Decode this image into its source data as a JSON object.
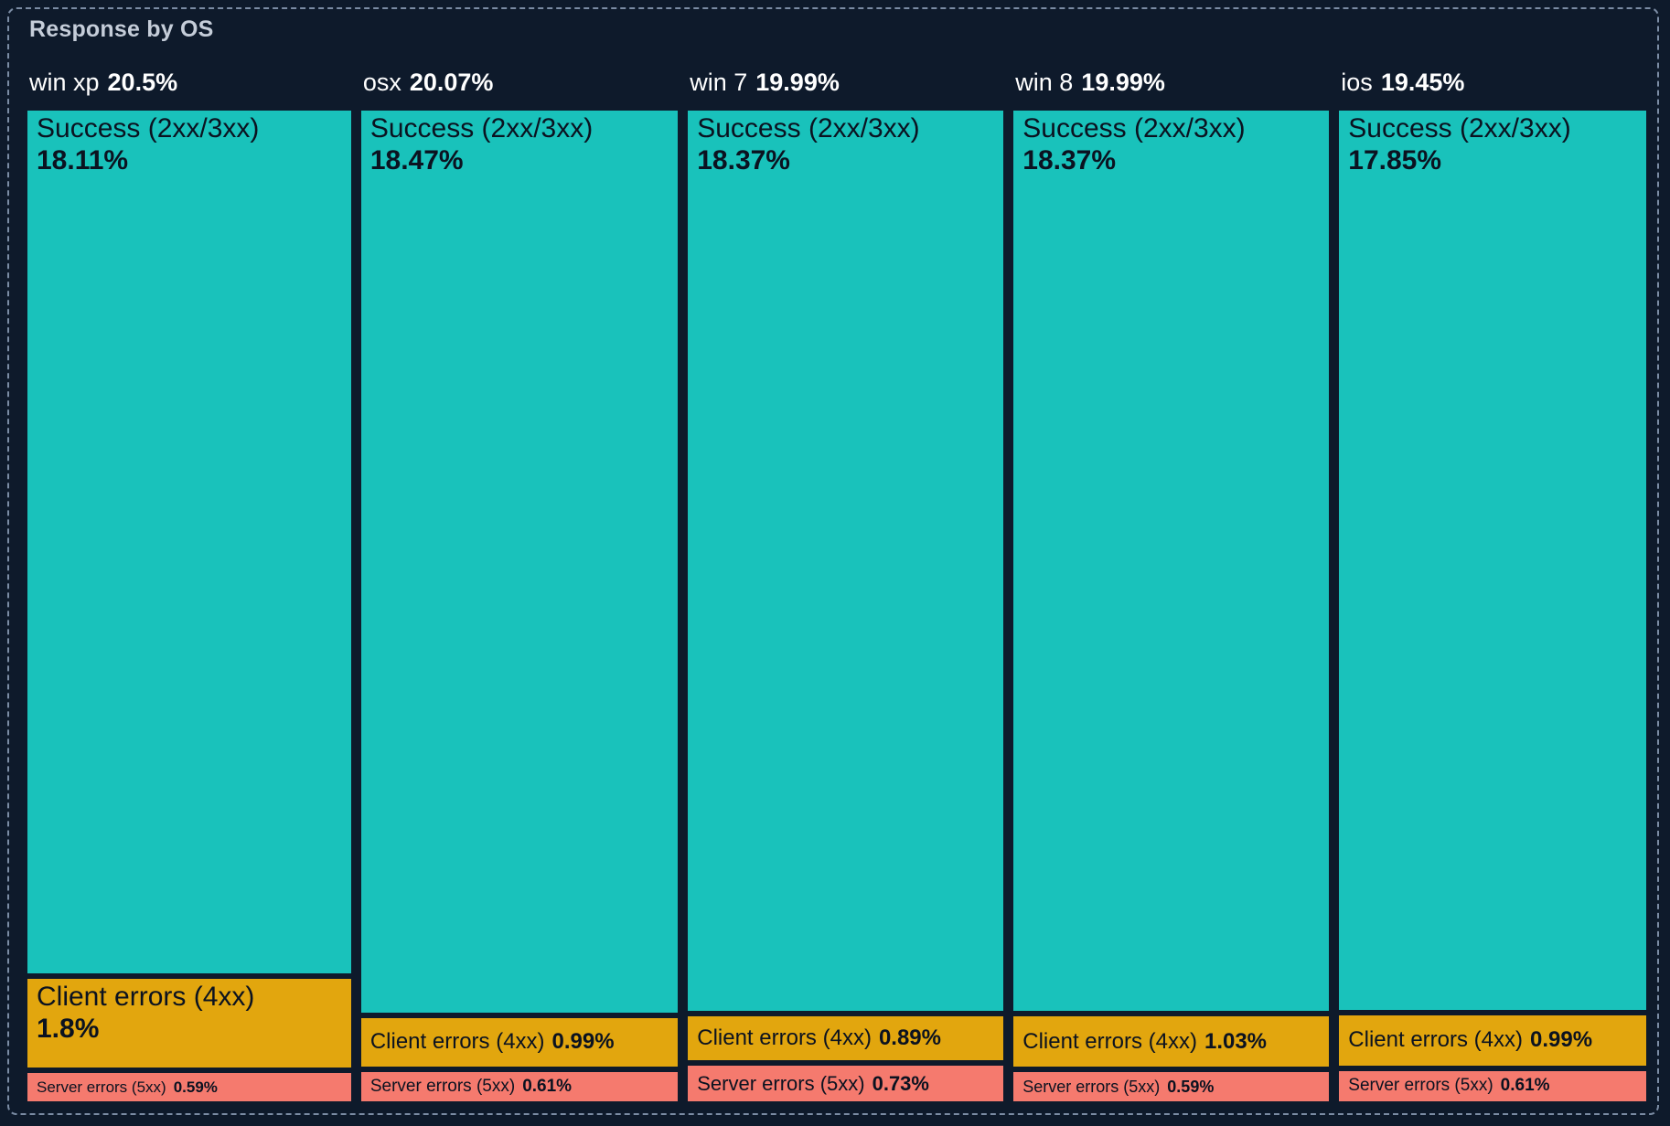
{
  "panel": {
    "title": "Response by OS"
  },
  "colors": {
    "background": "#0e1a2b",
    "border_dashed": "#7b8ca4",
    "title_text": "#c5cdd9",
    "header_text": "#ffffff",
    "cell_text": "#0b1220",
    "success": "#19c2bb",
    "client": "#e2a60e",
    "server": "#f57a6e"
  },
  "columns": [
    {
      "name": "win xp",
      "share": 20.5,
      "share_label": "20.5%",
      "segments": [
        {
          "label": "Success (2xx/3xx)",
          "value": 18.11,
          "value_label": "18.11%"
        },
        {
          "label": "Client errors (4xx)",
          "value": 1.8,
          "value_label": "1.8%"
        },
        {
          "label": "Server errors (5xx)",
          "value": 0.59,
          "value_label": "0.59%"
        }
      ]
    },
    {
      "name": "osx",
      "share": 20.07,
      "share_label": "20.07%",
      "segments": [
        {
          "label": "Success (2xx/3xx)",
          "value": 18.47,
          "value_label": "18.47%"
        },
        {
          "label": "Client errors (4xx)",
          "value": 0.99,
          "value_label": "0.99%"
        },
        {
          "label": "Server errors (5xx)",
          "value": 0.61,
          "value_label": "0.61%"
        }
      ]
    },
    {
      "name": "win 7",
      "share": 19.99,
      "share_label": "19.99%",
      "segments": [
        {
          "label": "Success (2xx/3xx)",
          "value": 18.37,
          "value_label": "18.37%"
        },
        {
          "label": "Client errors (4xx)",
          "value": 0.89,
          "value_label": "0.89%"
        },
        {
          "label": "Server errors (5xx)",
          "value": 0.73,
          "value_label": "0.73%"
        }
      ]
    },
    {
      "name": "win 8",
      "share": 19.99,
      "share_label": "19.99%",
      "segments": [
        {
          "label": "Success (2xx/3xx)",
          "value": 18.37,
          "value_label": "18.37%"
        },
        {
          "label": "Client errors (4xx)",
          "value": 1.03,
          "value_label": "1.03%"
        },
        {
          "label": "Server errors (5xx)",
          "value": 0.59,
          "value_label": "0.59%"
        }
      ]
    },
    {
      "name": "ios",
      "share": 19.45,
      "share_label": "19.45%",
      "segments": [
        {
          "label": "Success (2xx/3xx)",
          "value": 17.85,
          "value_label": "17.85%"
        },
        {
          "label": "Client errors (4xx)",
          "value": 0.99,
          "value_label": "0.99%"
        },
        {
          "label": "Server errors (5xx)",
          "value": 0.61,
          "value_label": "0.61%"
        }
      ]
    }
  ],
  "chart_data": {
    "type": "treemap",
    "title": "Response by OS",
    "group_dimension": "os",
    "value_unit": "%",
    "legend_position": "none",
    "categories": [
      "win xp",
      "osx",
      "win 7",
      "win 8",
      "ios"
    ],
    "group_totals": [
      20.5,
      20.07,
      19.99,
      19.99,
      19.45
    ],
    "series": [
      {
        "name": "Success (2xx/3xx)",
        "color": "#19c2bb",
        "values": [
          18.11,
          18.47,
          18.37,
          18.37,
          17.85
        ]
      },
      {
        "name": "Client errors (4xx)",
        "color": "#e2a60e",
        "values": [
          1.8,
          0.99,
          0.89,
          1.03,
          0.99
        ]
      },
      {
        "name": "Server errors (5xx)",
        "color": "#f57a6e",
        "values": [
          0.59,
          0.61,
          0.73,
          0.59,
          0.61
        ]
      }
    ]
  }
}
